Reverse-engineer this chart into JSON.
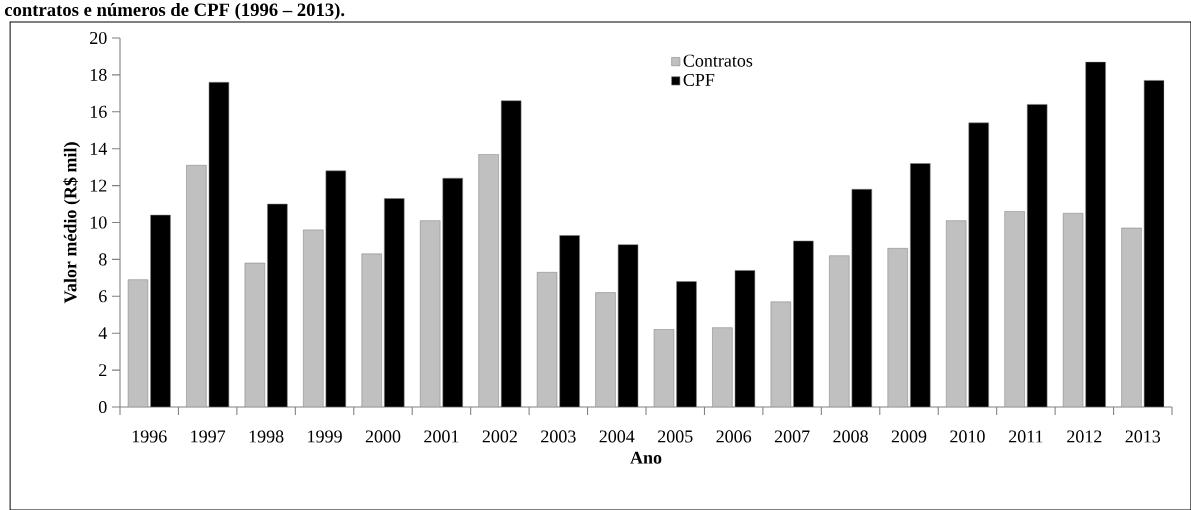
{
  "chart_data": {
    "type": "bar",
    "title": "contratos e números de CPF (1996 – 2013).",
    "xlabel": "Ano",
    "ylabel": "Valor médio (R$ mil)",
    "categories": [
      "1996",
      "1997",
      "1998",
      "1999",
      "2000",
      "2001",
      "2002",
      "2003",
      "2004",
      "2005",
      "2006",
      "2007",
      "2008",
      "2009",
      "2010",
      "2011",
      "2012",
      "2013"
    ],
    "series": [
      {
        "name": "Contratos",
        "color": "#c0c0c0",
        "values": [
          6.9,
          13.1,
          7.8,
          9.6,
          8.3,
          10.1,
          13.7,
          7.3,
          6.2,
          4.2,
          4.3,
          5.7,
          8.2,
          8.6,
          10.1,
          10.6,
          10.5,
          9.7
        ]
      },
      {
        "name": "CPF",
        "color": "#000000",
        "values": [
          10.4,
          17.6,
          11.0,
          12.8,
          11.3,
          12.4,
          16.6,
          9.3,
          8.8,
          6.8,
          7.4,
          9.0,
          11.8,
          13.2,
          15.4,
          16.4,
          18.7,
          17.7
        ]
      }
    ],
    "ylim": [
      0,
      20
    ],
    "yticks": [
      0,
      2,
      4,
      6,
      8,
      10,
      12,
      14,
      16,
      18,
      20
    ],
    "legend": "top"
  }
}
